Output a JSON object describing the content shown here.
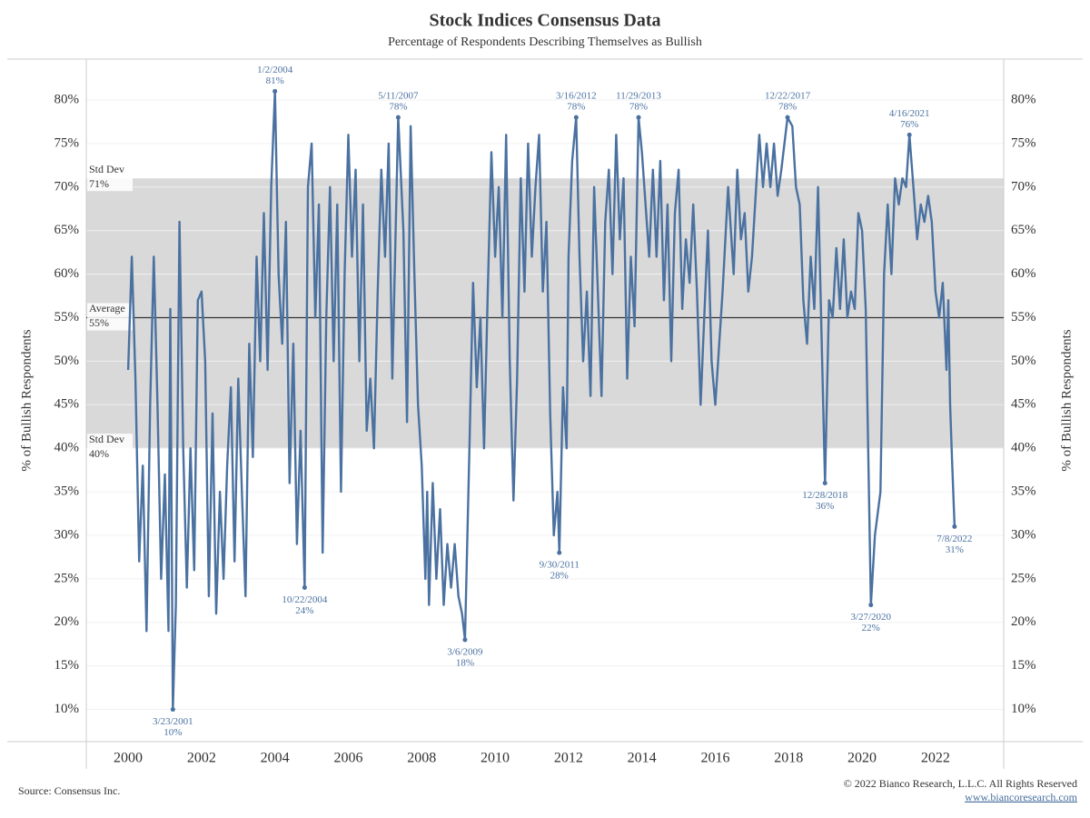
{
  "chart_data": {
    "type": "line",
    "title": "Stock Indices Consensus Data",
    "subtitle": "Percentage of Respondents Describing Themselves as Bullish",
    "y_label": "% of Bullish Respondents",
    "source": "Source: Consensus Inc.",
    "copyright": "© 2022 Bianco Research, L.L.C. All Rights Reserved",
    "url": "www.biancoresearch.com",
    "color": "#4a71a0",
    "grid": true,
    "xlim": [
      1998.86,
      2023.86
    ],
    "xticks": [
      2000,
      2002,
      2004,
      2006,
      2008,
      2010,
      2012,
      2014,
      2016,
      2018,
      2020,
      2022
    ],
    "ylim": [
      6.3,
      84.7
    ],
    "yticks": [
      {
        "value": 10,
        "label": "10%"
      },
      {
        "value": 15,
        "label": "15%"
      },
      {
        "value": 20,
        "label": "20%"
      },
      {
        "value": 25,
        "label": "25%"
      },
      {
        "value": 30,
        "label": "30%"
      },
      {
        "value": 35,
        "label": "35%"
      },
      {
        "value": 40,
        "label": "40%"
      },
      {
        "value": 45,
        "label": "45%"
      },
      {
        "value": 50,
        "label": "50%"
      },
      {
        "value": 55,
        "label": "55%"
      },
      {
        "value": 60,
        "label": "60%"
      },
      {
        "value": 65,
        "label": "65%"
      },
      {
        "value": 70,
        "label": "70%"
      },
      {
        "value": 75,
        "label": "75%"
      },
      {
        "value": 80,
        "label": "80%"
      }
    ],
    "std_dev_upper": {
      "label": "Std Dev",
      "value": 71,
      "value_label": "71%"
    },
    "average": {
      "label": "Average",
      "value": 55,
      "value_label": "55%"
    },
    "std_dev_lower": {
      "label": "Std Dev",
      "value": 40,
      "value_label": "40%"
    },
    "x": [
      2000.0,
      2000.1,
      2000.2,
      2000.3,
      2000.4,
      2000.5,
      2000.6,
      2000.7,
      2000.8,
      2000.9,
      2001.0,
      2001.1,
      2001.15,
      2001.22,
      2001.3,
      2001.4,
      2001.5,
      2001.6,
      2001.7,
      2001.8,
      2001.9,
      2002.0,
      2002.1,
      2002.2,
      2002.3,
      2002.4,
      2002.5,
      2002.6,
      2002.7,
      2002.8,
      2002.9,
      2003.0,
      2003.1,
      2003.2,
      2003.3,
      2003.4,
      2003.5,
      2003.6,
      2003.7,
      2003.8,
      2003.9,
      2004.0,
      2004.1,
      2004.2,
      2004.3,
      2004.4,
      2004.5,
      2004.6,
      2004.7,
      2004.81,
      2004.9,
      2005.0,
      2005.1,
      2005.2,
      2005.3,
      2005.4,
      2005.5,
      2005.6,
      2005.7,
      2005.8,
      2005.9,
      2006.0,
      2006.1,
      2006.2,
      2006.3,
      2006.4,
      2006.5,
      2006.6,
      2006.7,
      2006.8,
      2006.9,
      2007.0,
      2007.1,
      2007.2,
      2007.36,
      2007.5,
      2007.6,
      2007.7,
      2007.8,
      2007.9,
      2008.0,
      2008.1,
      2008.15,
      2008.2,
      2008.3,
      2008.4,
      2008.5,
      2008.6,
      2008.7,
      2008.8,
      2008.9,
      2009.0,
      2009.1,
      2009.18,
      2009.3,
      2009.4,
      2009.5,
      2009.6,
      2009.7,
      2009.8,
      2009.9,
      2010.0,
      2010.1,
      2010.2,
      2010.3,
      2010.4,
      2010.5,
      2010.6,
      2010.7,
      2010.8,
      2010.9,
      2011.0,
      2011.1,
      2011.2,
      2011.3,
      2011.4,
      2011.5,
      2011.6,
      2011.7,
      2011.75,
      2011.85,
      2011.95,
      2012.0,
      2012.1,
      2012.21,
      2012.3,
      2012.4,
      2012.5,
      2012.6,
      2012.7,
      2012.8,
      2012.9,
      2013.0,
      2013.1,
      2013.2,
      2013.3,
      2013.4,
      2013.5,
      2013.6,
      2013.7,
      2013.8,
      2013.91,
      2014.0,
      2014.1,
      2014.2,
      2014.3,
      2014.4,
      2014.5,
      2014.6,
      2014.7,
      2014.8,
      2014.9,
      2015.0,
      2015.1,
      2015.2,
      2015.3,
      2015.4,
      2015.5,
      2015.6,
      2015.7,
      2015.8,
      2015.9,
      2016.0,
      2016.2,
      2016.35,
      2016.5,
      2016.6,
      2016.7,
      2016.8,
      2016.9,
      2017.0,
      2017.2,
      2017.3,
      2017.4,
      2017.5,
      2017.6,
      2017.7,
      2017.8,
      2017.97,
      2018.1,
      2018.2,
      2018.3,
      2018.4,
      2018.5,
      2018.6,
      2018.7,
      2018.8,
      2018.99,
      2019.1,
      2019.2,
      2019.3,
      2019.4,
      2019.5,
      2019.6,
      2019.7,
      2019.8,
      2019.9,
      2020.0,
      2020.1,
      2020.24,
      2020.35,
      2020.5,
      2020.6,
      2020.7,
      2020.8,
      2020.9,
      2021.0,
      2021.1,
      2021.2,
      2021.29,
      2021.4,
      2021.5,
      2021.6,
      2021.7,
      2021.8,
      2021.9,
      2022.0,
      2022.1,
      2022.2,
      2022.3,
      2022.35,
      2022.4,
      2022.45,
      2022.52
    ],
    "values": [
      49,
      62,
      48,
      27,
      38,
      19,
      45,
      62,
      45,
      25,
      37,
      19,
      56,
      10,
      22,
      66,
      40,
      24,
      40,
      26,
      57,
      58,
      50,
      23,
      44,
      21,
      35,
      25,
      38,
      47,
      27,
      48,
      35,
      23,
      52,
      39,
      62,
      50,
      67,
      49,
      70,
      81,
      60,
      52,
      66,
      36,
      52,
      29,
      42,
      24,
      70,
      75,
      55,
      68,
      28,
      55,
      70,
      50,
      68,
      35,
      60,
      76,
      62,
      72,
      50,
      68,
      42,
      48,
      40,
      58,
      72,
      62,
      75,
      48,
      78,
      65,
      43,
      77,
      60,
      45,
      38,
      25,
      35,
      22,
      36,
      25,
      33,
      22,
      29,
      24,
      29,
      23,
      21,
      18,
      40,
      59,
      47,
      55,
      40,
      58,
      74,
      62,
      70,
      55,
      76,
      50,
      34,
      48,
      71,
      58,
      75,
      62,
      70,
      76,
      58,
      66,
      44,
      30,
      35,
      28,
      47,
      40,
      62,
      73,
      78,
      62,
      50,
      58,
      46,
      70,
      58,
      46,
      66,
      72,
      60,
      76,
      64,
      71,
      48,
      62,
      54,
      78,
      74,
      68,
      62,
      72,
      62,
      73,
      57,
      68,
      50,
      67,
      72,
      56,
      64,
      59,
      68,
      58,
      45,
      55,
      65,
      50,
      45,
      58,
      70,
      60,
      72,
      64,
      67,
      58,
      62,
      76,
      70,
      75,
      70,
      75,
      69,
      72,
      78,
      77,
      70,
      68,
      57,
      52,
      62,
      56,
      70,
      36,
      57,
      55,
      63,
      56,
      64,
      55,
      58,
      56,
      67,
      65,
      56,
      22,
      30,
      35,
      60,
      68,
      60,
      71,
      68,
      71,
      70,
      76,
      70,
      64,
      68,
      66,
      69,
      66,
      58,
      55,
      59,
      49,
      57,
      45,
      39,
      31
    ],
    "annotations": [
      {
        "date": "3/23/2001",
        "x": 2001.22,
        "value": 10,
        "label": "10%"
      },
      {
        "date": "1/2/2004",
        "x": 2004.0,
        "value": 81,
        "label": "81%"
      },
      {
        "date": "10/22/2004",
        "x": 2004.81,
        "value": 24,
        "label": "24%"
      },
      {
        "date": "5/11/2007",
        "x": 2007.36,
        "value": 78,
        "label": "78%"
      },
      {
        "date": "3/6/2009",
        "x": 2009.18,
        "value": 18,
        "label": "18%"
      },
      {
        "date": "9/30/2011",
        "x": 2011.75,
        "value": 28,
        "label": "28%"
      },
      {
        "date": "3/16/2012",
        "x": 2012.21,
        "value": 78,
        "label": "78%"
      },
      {
        "date": "11/29/2013",
        "x": 2013.91,
        "value": 78,
        "label": "78%"
      },
      {
        "date": "12/22/2017",
        "x": 2017.97,
        "value": 78,
        "label": "78%"
      },
      {
        "date": "12/28/2018",
        "x": 2018.99,
        "value": 36,
        "label": "36%"
      },
      {
        "date": "3/27/2020",
        "x": 2020.24,
        "value": 22,
        "label": "22%"
      },
      {
        "date": "4/16/2021",
        "x": 2021.29,
        "value": 76,
        "label": "76%"
      },
      {
        "date": "7/8/2022",
        "x": 2022.52,
        "value": 31,
        "label": "31%"
      }
    ]
  }
}
